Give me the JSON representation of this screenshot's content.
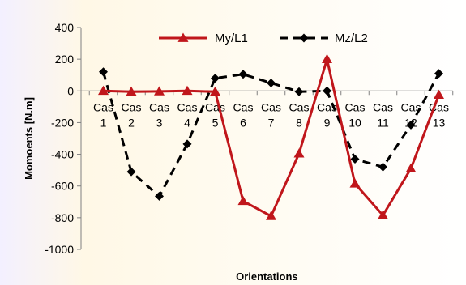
{
  "chart_data": {
    "type": "line",
    "title": "",
    "xlabel": "Orientations",
    "ylabel": "Momoents  [N.m]",
    "ylim": [
      -1000,
      400
    ],
    "yticks": [
      400,
      200,
      0,
      -200,
      -400,
      -600,
      -800,
      -1000
    ],
    "grid": false,
    "legend": "top-right",
    "categories": [
      [
        "Cas",
        "1"
      ],
      [
        "Cas",
        "2"
      ],
      [
        "Cas",
        "3"
      ],
      [
        "Cas",
        "4"
      ],
      [
        "Cas",
        "5"
      ],
      [
        "Cas",
        "6"
      ],
      [
        "Cas",
        "7"
      ],
      [
        "Cas",
        "8"
      ],
      [
        "Cas",
        "9"
      ],
      [
        "Cas",
        "10"
      ],
      [
        "Cas",
        "11"
      ],
      [
        "Cas",
        "12"
      ],
      [
        "Cas",
        "13"
      ]
    ],
    "series": [
      {
        "name": "My/L1",
        "color": "#c0161b",
        "dash": "solid",
        "marker": "triangle",
        "values": [
          0,
          -5,
          -3,
          0,
          -5,
          -695,
          -790,
          -395,
          200,
          -585,
          -785,
          -490,
          -25
        ]
      },
      {
        "name": "Mz/L2",
        "color": "#000000",
        "dash": "dashed",
        "marker": "diamond",
        "values": [
          120,
          -510,
          -665,
          -335,
          80,
          105,
          50,
          -5,
          0,
          -430,
          -480,
          -215,
          110
        ]
      }
    ]
  }
}
